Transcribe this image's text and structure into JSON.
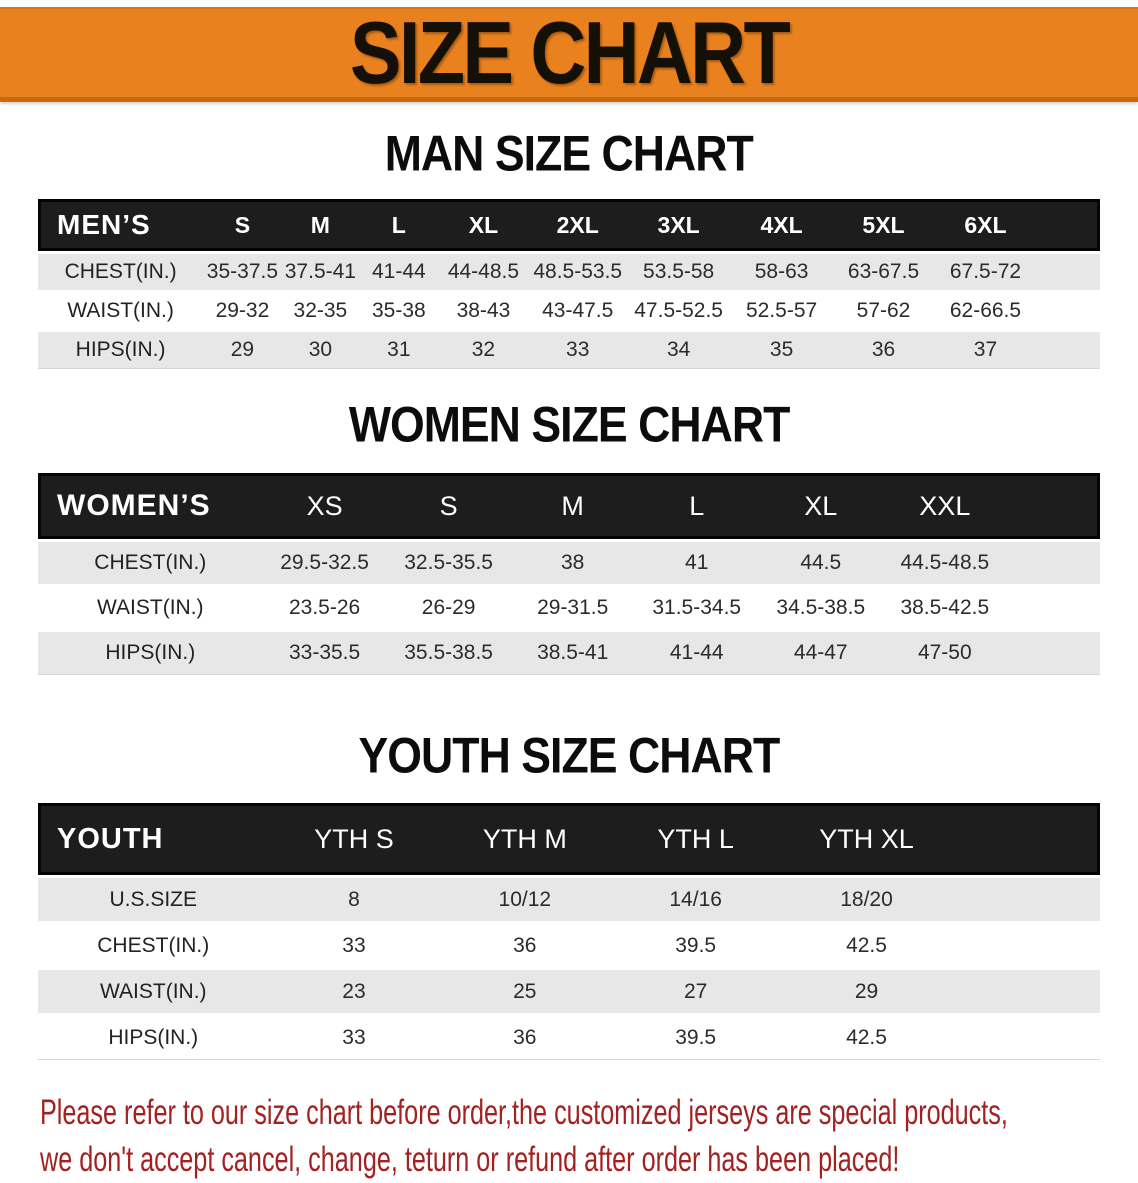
{
  "banner": {
    "title": "SIZE CHART",
    "bg_color": "#E8811E"
  },
  "sections": [
    {
      "heading": "MAN SIZE CHART",
      "table": {
        "header_label": "MEN’S",
        "columns": [
          "S",
          "M",
          "L",
          "XL",
          "2XL",
          "3XL",
          "4XL",
          "5XL",
          "6XL"
        ],
        "rows": [
          {
            "label": "CHEST(IN.)",
            "values": [
              "35-37.5",
              "37.5-41",
              "41-44",
              "44-48.5",
              "48.5-53.5",
              "53.5-58",
              "58-63",
              "63-67.5",
              "67.5-72"
            ]
          },
          {
            "label": "WAIST(IN.)",
            "values": [
              "29-32",
              "32-35",
              "35-38",
              "38-43",
              "43-47.5",
              "47.5-52.5",
              "52.5-57",
              "57-62",
              "62-66.5"
            ]
          },
          {
            "label": "HIPS(IN.)",
            "values": [
              "29",
              "30",
              "31",
              "32",
              "33",
              "34",
              "35",
              "36",
              "37"
            ]
          }
        ]
      }
    },
    {
      "heading": "WOMEN SIZE CHART",
      "table": {
        "header_label": "WOMEN’S",
        "columns": [
          "XS",
          "S",
          "M",
          "L",
          "XL",
          "XXL"
        ],
        "rows": [
          {
            "label": "CHEST(IN.)",
            "values": [
              "29.5-32.5",
              "32.5-35.5",
              "38",
              "41",
              "44.5",
              "44.5-48.5"
            ]
          },
          {
            "label": "WAIST(IN.)",
            "values": [
              "23.5-26",
              "26-29",
              "29-31.5",
              "31.5-34.5",
              "34.5-38.5",
              "38.5-42.5"
            ]
          },
          {
            "label": "HIPS(IN.)",
            "values": [
              "33-35.5",
              "35.5-38.5",
              "38.5-41",
              "41-44",
              "44-47",
              "47-50"
            ]
          }
        ]
      }
    },
    {
      "heading": "YOUTH SIZE CHART",
      "table": {
        "header_label": "YOUTH",
        "columns": [
          "YTH S",
          "YTH M",
          "YTH L",
          "YTH XL"
        ],
        "rows": [
          {
            "label": "U.S.SIZE",
            "values": [
              "8",
              "10/12",
              "14/16",
              "18/20"
            ]
          },
          {
            "label": "CHEST(IN.)",
            "values": [
              "33",
              "36",
              "39.5",
              "42.5"
            ]
          },
          {
            "label": "WAIST(IN.)",
            "values": [
              "23",
              "25",
              "27",
              "29"
            ]
          },
          {
            "label": "HIPS(IN.)",
            "values": [
              "33",
              "36",
              "39.5",
              "42.5"
            ]
          }
        ]
      }
    }
  ],
  "disclaimer": {
    "line1": "Please refer to our size chart before order,the customized jerseys are special products,",
    "line2": "we don't accept cancel, change, teturn or refund after order has been placed!",
    "text_color": "#A32121"
  },
  "colors": {
    "banner_orange": "#E8811E",
    "table_header_black": "#1d1d1d",
    "row_stripe_gray": "#E7E7E7",
    "disclaimer_red": "#A32121"
  }
}
